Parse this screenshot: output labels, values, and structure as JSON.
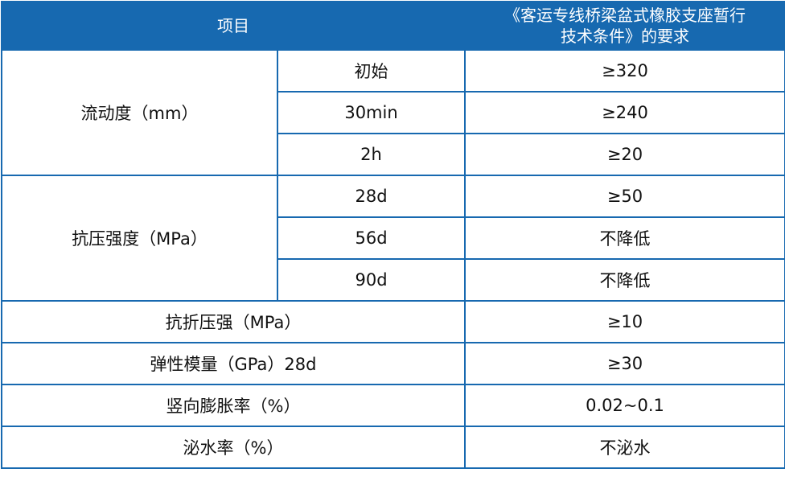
{
  "header": {
    "item": "项目",
    "requirement": "《客运专线桥梁盆式橡胶支座暂行技术条件》的要求"
  },
  "header_lines": [
    "《客运专线桥梁盆式橡胶支座暂行技术条件》的要求"
  ],
  "fluidity": {
    "label": "流动度（mm）",
    "rows": [
      {
        "sub": "初始",
        "value": "≥320"
      },
      {
        "sub": "30min",
        "value": "≥240"
      },
      {
        "sub": "2h",
        "value": "≥20"
      }
    ]
  },
  "compressive": {
    "label": "抗压强度（MPa）",
    "rows": [
      {
        "sub": "28d",
        "value": "≥50"
      },
      {
        "sub": "56d",
        "value": "不降低"
      },
      {
        "sub": "90d",
        "value": "不降低"
      }
    ]
  },
  "rows": [
    {
      "label": "抗折压强（MPa）",
      "value": "≥10"
    },
    {
      "label": "弹性模量（GPa）28d",
      "value": "≥30"
    },
    {
      "label": "竖向膨胀率（%）",
      "value": "0.02~0.1"
    },
    {
      "label": "泌水率（%）",
      "value": "不泌水"
    }
  ],
  "colors": {
    "header_bg": "#1769b0",
    "border": "#1769b0"
  }
}
